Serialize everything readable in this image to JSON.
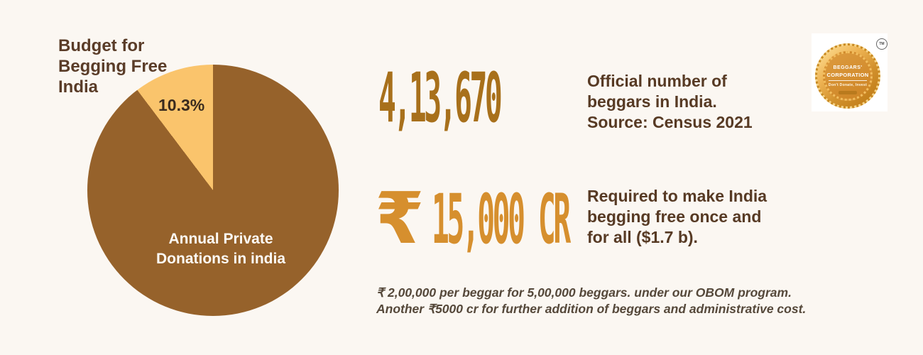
{
  "page": {
    "background_color": "#FBF7F2"
  },
  "chart_data": {
    "type": "pie",
    "title": "Budget for Begging Free India",
    "slices": [
      {
        "label": "Budget for Begging Free India",
        "value": 10.3,
        "color": "#FAC46C"
      },
      {
        "label": "Annual Private Donations in india",
        "value": 89.7,
        "color": "#96622B"
      }
    ],
    "labels_on_chart": [
      "10.3%",
      "Annual Private Donations in india"
    ],
    "legend_position": "none",
    "start": "yellow slice ends at 12 o'clock, spans 37.1 degrees counter-clockwise"
  },
  "pie_section": {
    "title": "Budget for\nBegging Free\nIndia",
    "percentage_label": "10.3%",
    "inner_label": "Annual Private\nDonations in india"
  },
  "stats": {
    "beggars": {
      "value": "4,13,670",
      "color": "#A8701B",
      "description": "Official number of\nbeggars in India.\nSource: Census 2021"
    },
    "funding": {
      "currency": "₹",
      "value": "15,000 CR",
      "color": "#D68F2E",
      "description": "Required to make India\nbegging free once and\nfor all ($1.7 b)."
    }
  },
  "footnote": "₹ 2,00,000 per beggar for 5,00,000 beggars. under our OBOM program.\nAnother ₹5000 cr for further addition of beggars and administrative cost.",
  "logo": {
    "name_line1": "BEGGARS'",
    "name_line2": "CORPORATION",
    "tagline": "Don't Donate, Invest",
    "trademark": "TM"
  }
}
